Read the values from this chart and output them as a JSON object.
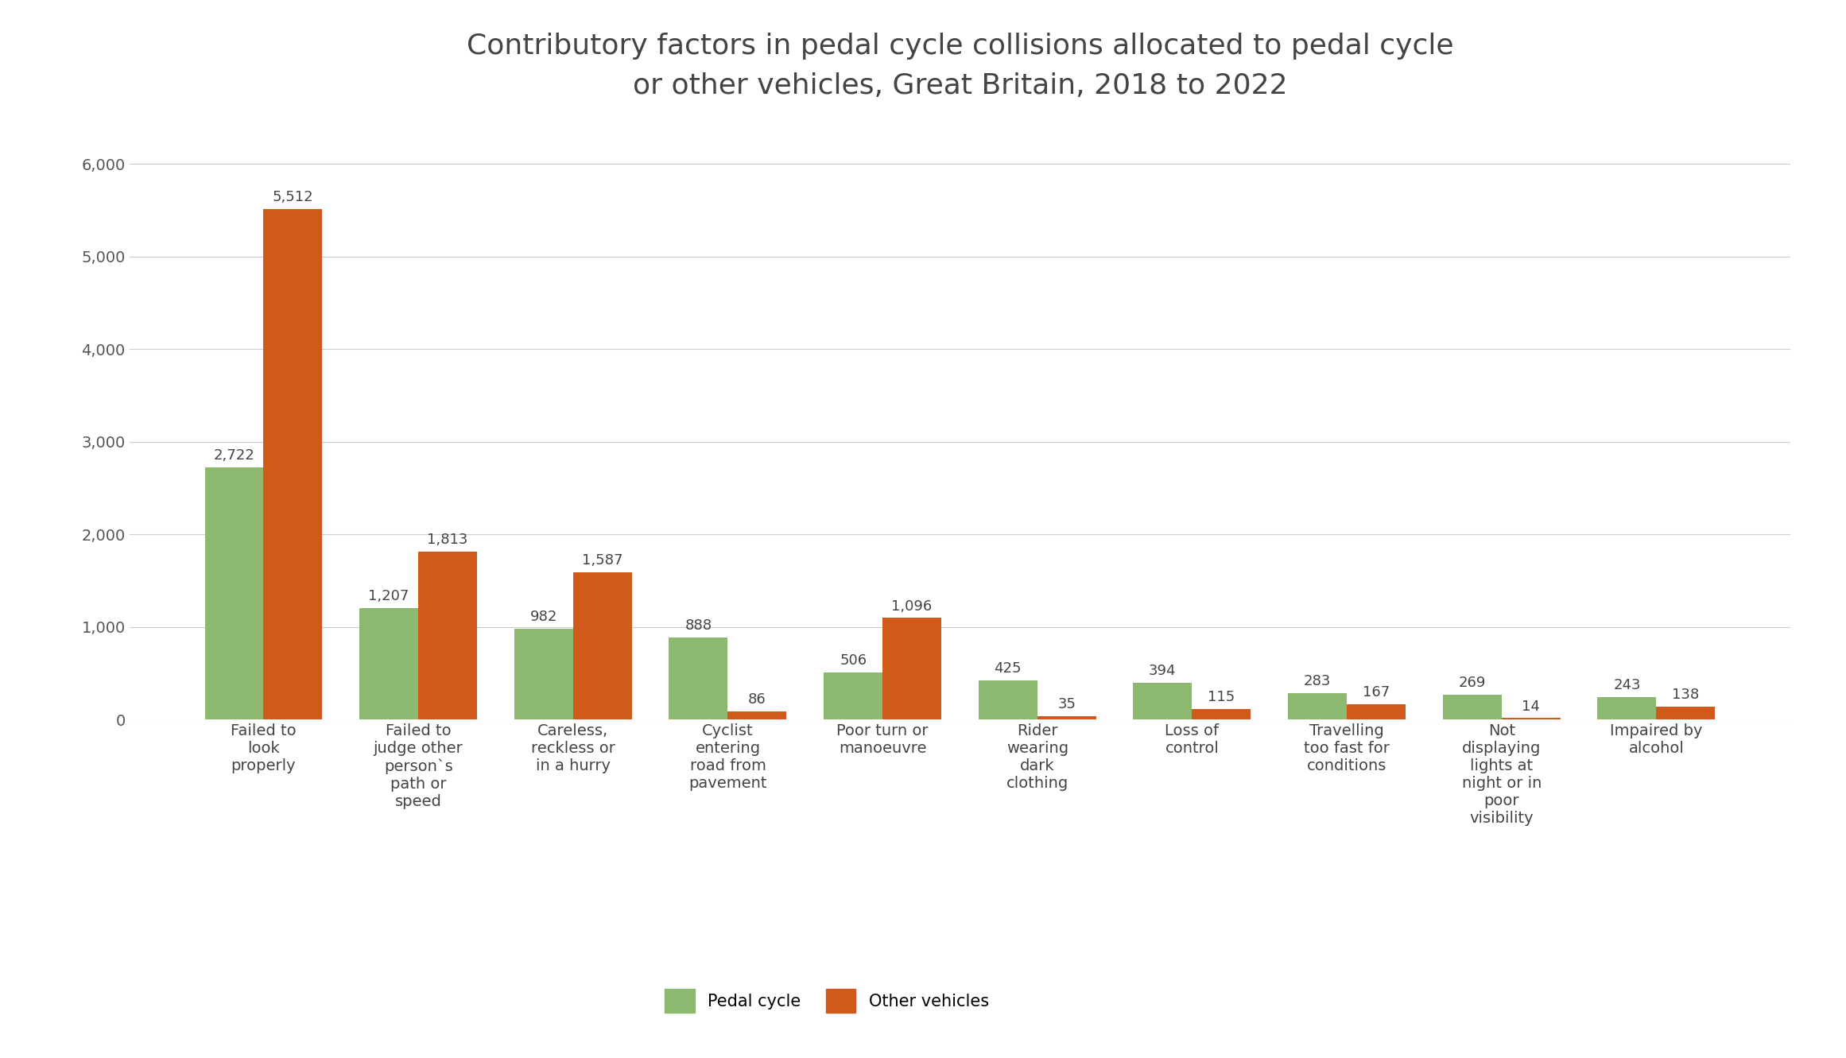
{
  "title": "Contributory factors in pedal cycle collisions allocated to pedal cycle\nor other vehicles, Great Britain, 2018 to 2022",
  "categories": [
    "Failed to\nlook\nproperly",
    "Failed to\njudge other\nperson`s\npath or\nspeed",
    "Careless,\nreckless or\nin a hurry",
    "Cyclist\nentering\nroad from\npavement",
    "Poor turn or\nmanoeuvre",
    "Rider\nwearing\ndark\nclothing",
    "Loss of\ncontrol",
    "Travelling\ntoo fast for\nconditions",
    "Not\ndisplaying\nlights at\nnight or in\npoor\nvisibility",
    "Impaired by\nalcohol"
  ],
  "pedal_cycle": [
    2722,
    1207,
    982,
    888,
    506,
    425,
    394,
    283,
    269,
    243
  ],
  "other_vehicles": [
    5512,
    1813,
    1587,
    86,
    1096,
    35,
    115,
    167,
    14,
    138
  ],
  "pedal_cycle_color": "#8CB870",
  "other_vehicles_color": "#D05A1A",
  "background_color": "#FFFFFF",
  "title_fontsize": 26,
  "label_fontsize": 14,
  "tick_fontsize": 14,
  "annotation_fontsize": 13,
  "legend_fontsize": 15,
  "ylim": [
    0,
    6400
  ],
  "yticks": [
    0,
    1000,
    2000,
    3000,
    4000,
    5000,
    6000
  ],
  "bar_width": 0.38,
  "legend_labels": [
    "Pedal cycle",
    "Other vehicles"
  ]
}
